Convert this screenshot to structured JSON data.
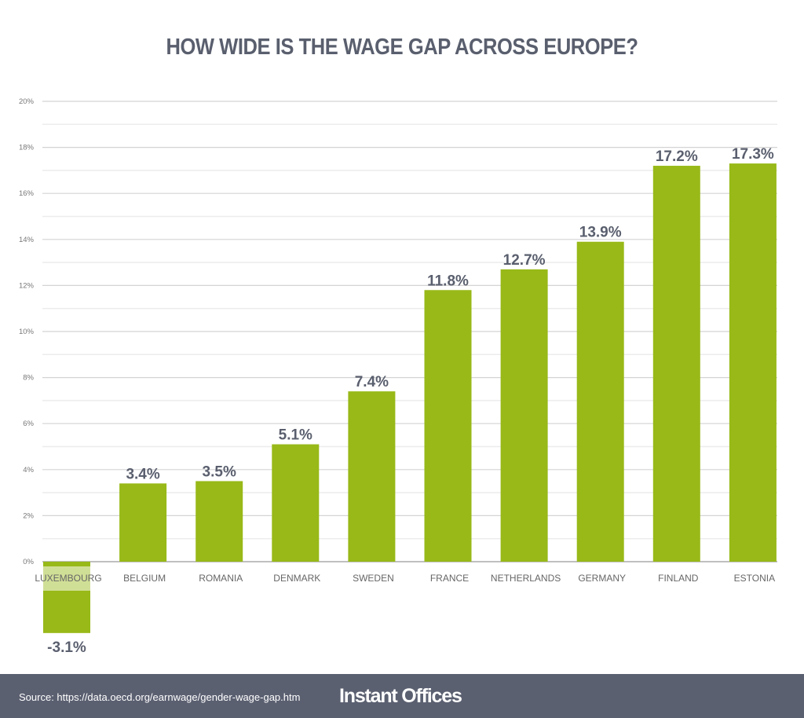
{
  "chart_data": {
    "type": "bar",
    "title": "HOW WIDE IS THE WAGE GAP ACROSS EUROPE?",
    "xlabel": "",
    "ylabel": "",
    "categories": [
      "LUXEMBOURG",
      "BELGIUM",
      "ROMANIA",
      "DENMARK",
      "SWEDEN",
      "FRANCE",
      "NETHERLANDS",
      "GERMANY",
      "FINLAND",
      "ESTONIA"
    ],
    "values": [
      -3.1,
      3.4,
      3.5,
      5.1,
      7.4,
      11.8,
      12.7,
      13.9,
      17.2,
      17.3
    ],
    "data_labels": [
      "-3.1%",
      "3.4%",
      "3.5%",
      "5.1%",
      "7.4%",
      "11.8%",
      "12.7%",
      "13.9%",
      "17.2%",
      "17.3%"
    ],
    "ylim": [
      0,
      20
    ],
    "yticks": [
      0,
      2,
      4,
      6,
      8,
      10,
      12,
      14,
      16,
      18,
      20
    ],
    "ytick_labels": [
      "0%",
      "2%",
      "4%",
      "6%",
      "8%",
      "10%",
      "12%",
      "14%",
      "16%",
      "18%",
      "20%"
    ],
    "grid": true,
    "bar_color": "#98b918",
    "label_color": "#5a5f6e"
  },
  "footer": {
    "source": "Source: https://data.oecd.org/earnwage/gender-wage-gap.htm",
    "logo": "Instant Offices",
    "background": "#5b6071"
  }
}
